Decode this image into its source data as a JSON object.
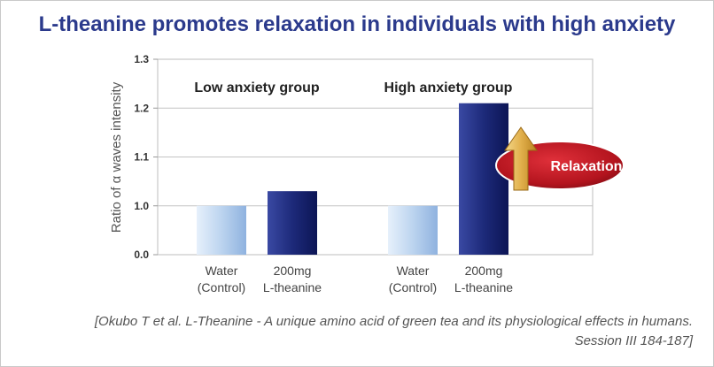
{
  "title": "L-theanine promotes relaxation in individuals with high anxiety",
  "citation": {
    "line1": "[Okubo T et al. L-Theanine - A unique amino acid of green tea and its physiological effects  in humans.",
    "line2": "Session III 184-187]"
  },
  "annotation": {
    "label": "Relaxation"
  },
  "chart_data": {
    "type": "bar",
    "ylabel": "Ratio of α waves intensity",
    "yticks": [
      "0.0",
      "1.0",
      "1.1",
      "1.2",
      "1.3"
    ],
    "ytick_values": [
      0.9,
      1.0,
      1.1,
      1.2,
      1.3
    ],
    "ylim": [
      0.9,
      1.3
    ],
    "axis_break": "0.0 shown at bottom (broken axis)",
    "grid": true,
    "groups": [
      {
        "label": "Low anxiety group",
        "bars": [
          {
            "label_line1": "Water",
            "label_line2": "(Control)",
            "value": 1.0,
            "style": "control"
          },
          {
            "label_line1": "200mg",
            "label_line2": "L-theanine",
            "value": 1.03,
            "style": "treatment"
          }
        ]
      },
      {
        "label": "High anxiety group",
        "bars": [
          {
            "label_line1": "Water",
            "label_line2": "(Control)",
            "value": 1.0,
            "style": "control"
          },
          {
            "label_line1": "200mg",
            "label_line2": "L-theanine",
            "value": 1.21,
            "style": "treatment"
          }
        ]
      }
    ],
    "colors": {
      "control": "#a9c8ea",
      "treatment": "#1d2a7a",
      "annotation": "#b3141e",
      "arrow": "#d9a53a"
    }
  }
}
